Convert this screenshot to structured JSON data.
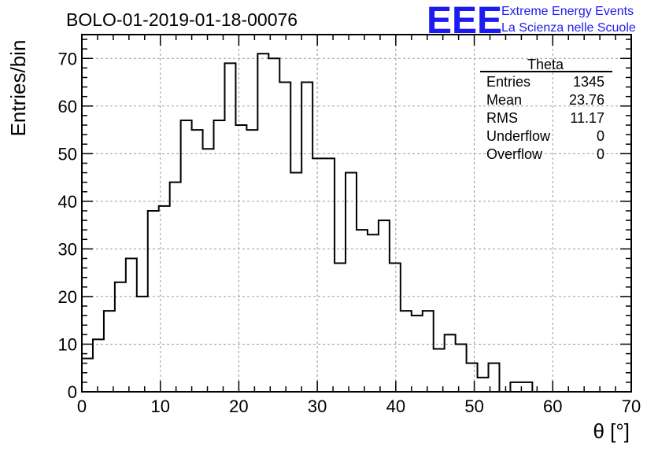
{
  "chart_data": {
    "type": "bar",
    "title": "BOLO-01-2019-01-18-00076",
    "xlabel": "θ [°]",
    "ylabel": "Entries/bin",
    "xlim": [
      0,
      70
    ],
    "ylim": [
      0,
      75
    ],
    "bin_width": 1.4,
    "xticks": [
      0,
      10,
      20,
      30,
      40,
      50,
      60,
      70
    ],
    "yticks": [
      0,
      10,
      20,
      30,
      40,
      50,
      60,
      70
    ],
    "grid": true,
    "values": [
      7,
      11,
      17,
      23,
      28,
      20,
      38,
      39,
      44,
      57,
      55,
      51,
      57,
      69,
      56,
      55,
      71,
      70,
      65,
      46,
      65,
      49,
      49,
      27,
      46,
      34,
      33,
      36,
      27,
      17,
      16,
      17,
      9,
      12,
      10,
      6,
      3,
      6,
      0,
      2,
      2,
      0,
      0,
      0,
      0,
      0,
      0,
      0,
      0,
      0
    ],
    "stats": {
      "name": "Theta",
      "rows": [
        {
          "label": "Entries",
          "value": "1345"
        },
        {
          "label": "Mean",
          "value": "23.76"
        },
        {
          "label": "RMS",
          "value": "11.17"
        },
        {
          "label": "Underflow",
          "value": "0"
        },
        {
          "label": "Overflow",
          "value": "0"
        }
      ]
    }
  },
  "logo": {
    "mark": "EEE",
    "line1": "Extreme Energy Events",
    "line2": "La Scienza nelle Scuole",
    "color": "#1c1cf0"
  }
}
